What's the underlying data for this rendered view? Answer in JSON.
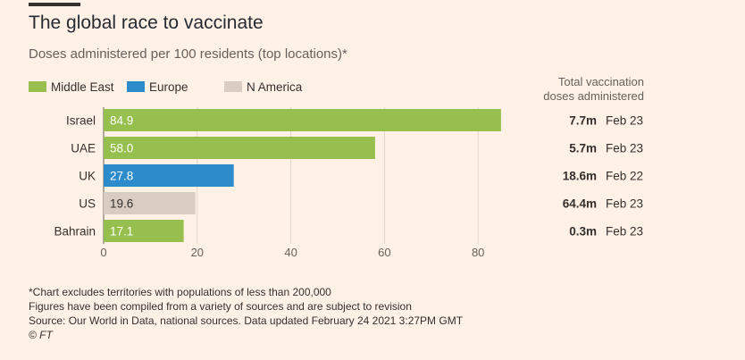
{
  "header": {
    "title": "The global race to vaccinate",
    "subtitle": "Doses administered per 100 residents (top locations)*",
    "right_heading_line1": "Total vaccination",
    "right_heading_line2": "doses administered"
  },
  "legend": [
    {
      "label": "Middle East",
      "color": "#96BF4D"
    },
    {
      "label": "Europe",
      "color": "#2B8BCB"
    },
    {
      "label": "N America",
      "color": "#D9CCC3"
    }
  ],
  "chart_data": {
    "type": "bar",
    "orientation": "horizontal",
    "categories": [
      "Israel",
      "UAE",
      "UK",
      "US",
      "Bahrain"
    ],
    "values": [
      84.9,
      58.0,
      27.8,
      19.6,
      17.1
    ],
    "value_labels": [
      "84.9",
      "58.0",
      "27.8",
      "19.6",
      "17.1"
    ],
    "regions": [
      "Middle East",
      "Middle East",
      "Europe",
      "N America",
      "Middle East"
    ],
    "xlim": [
      0,
      90
    ],
    "xticks": [
      0,
      20,
      40,
      60,
      80
    ],
    "grid": true,
    "title": "The global race to vaccinate",
    "xlabel": "",
    "ylabel": "",
    "totals": [
      {
        "total": "7.7m",
        "date": "Feb 23"
      },
      {
        "total": "5.7m",
        "date": "Feb 23"
      },
      {
        "total": "18.6m",
        "date": "Feb 22"
      },
      {
        "total": "64.4m",
        "date": "Feb 23"
      },
      {
        "total": "0.3m",
        "date": "Feb 23"
      }
    ]
  },
  "footer": {
    "note1": "*Chart excludes territories with populations of less than 200,000",
    "note2": "Figures have been compiled from a variety of sources and are subject to revision",
    "source": "Source: Our World in Data, national sources. Data updated February 24 2021 3:27PM GMT",
    "copyright": "© FT"
  }
}
